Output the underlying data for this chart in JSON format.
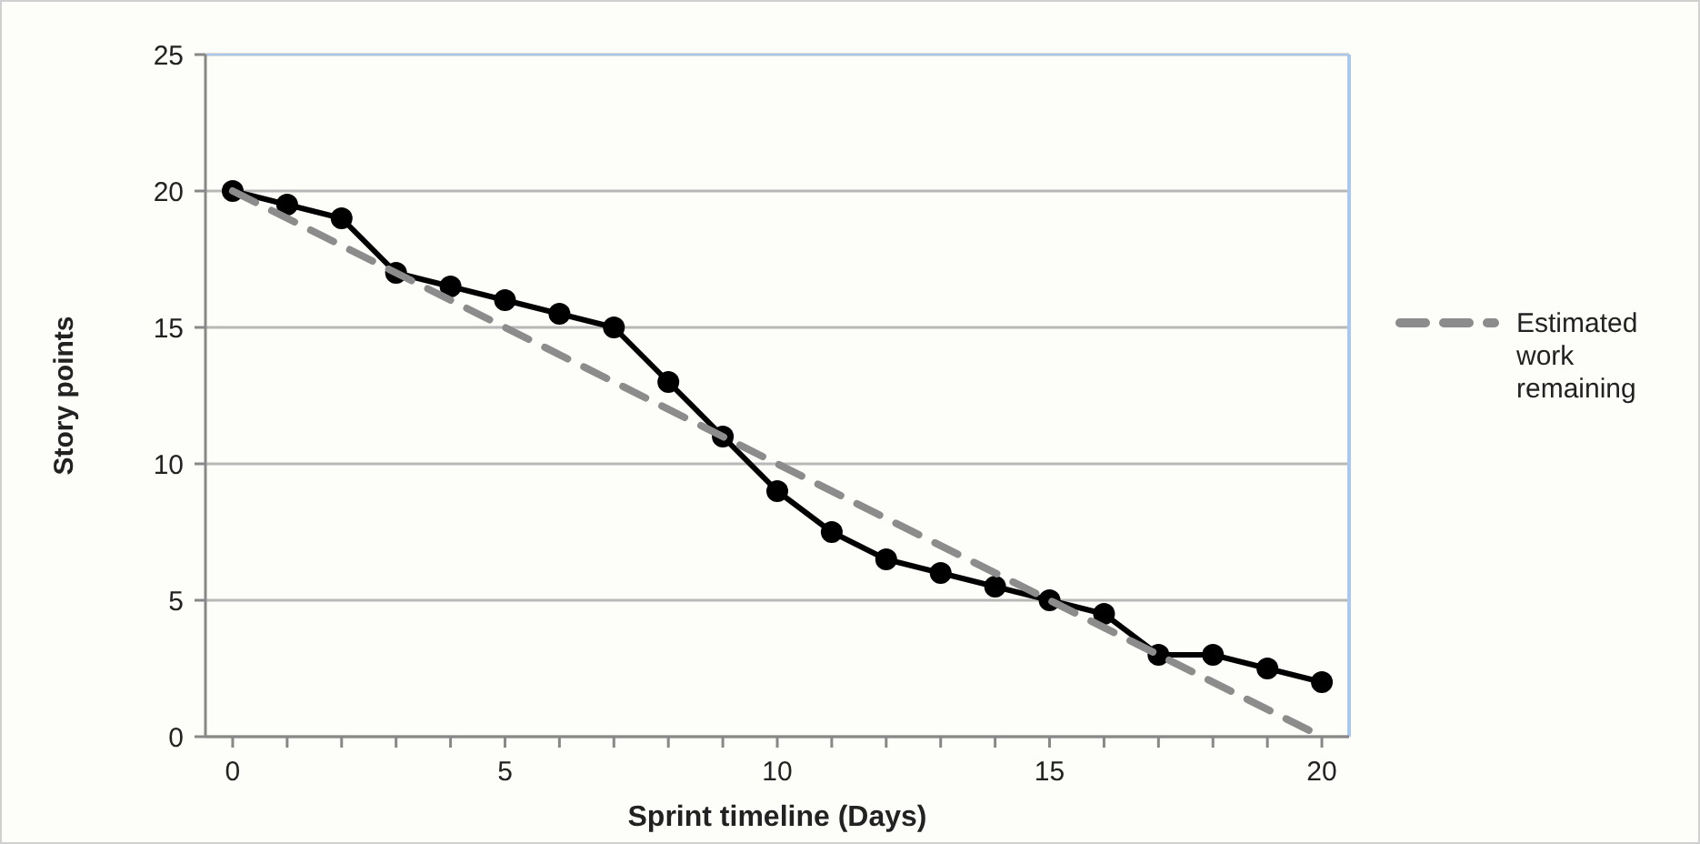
{
  "chart_data": {
    "type": "line",
    "xlabel": "Sprint timeline (Days)",
    "ylabel": "Story points",
    "xlim": [
      -0.5,
      20.5
    ],
    "ylim": [
      0,
      25
    ],
    "xticks": [
      0,
      {
        "value": 1,
        "label": null
      },
      {
        "value": 2,
        "label": null
      },
      {
        "value": 3,
        "label": null
      },
      {
        "value": 4,
        "label": null
      },
      5,
      {
        "value": 6,
        "label": null
      },
      {
        "value": 7,
        "label": null
      },
      {
        "value": 8,
        "label": null
      },
      {
        "value": 9,
        "label": null
      },
      10,
      {
        "value": 11,
        "label": null
      },
      {
        "value": 12,
        "label": null
      },
      {
        "value": 13,
        "label": null
      },
      {
        "value": 14,
        "label": null
      },
      15,
      {
        "value": 16,
        "label": null
      },
      {
        "value": 17,
        "label": null
      },
      {
        "value": 18,
        "label": null
      },
      {
        "value": 19,
        "label": null
      },
      20
    ],
    "yticks": [
      0,
      5,
      10,
      15,
      20,
      25
    ],
    "grid": "y",
    "legend": "right",
    "series": [
      {
        "color": "#000000",
        "marker": "circle",
        "line_style": "solid",
        "x": [
          0,
          1,
          2,
          3,
          4,
          5,
          6,
          7,
          8,
          9,
          10,
          11,
          12,
          13,
          14,
          15,
          16,
          17,
          18,
          19,
          20
        ],
        "values": [
          20,
          19.5,
          19,
          17,
          16.5,
          16,
          15.5,
          15,
          13,
          11,
          9,
          7.5,
          6.5,
          6,
          5.5,
          5,
          4.5,
          3,
          3,
          2.5,
          2
        ]
      },
      {
        "name": "Estimated work remaining",
        "color": "#8c8c8c",
        "marker": "none",
        "line_style": "dashed",
        "x": [
          0,
          20
        ],
        "values": [
          20,
          0
        ]
      }
    ]
  }
}
